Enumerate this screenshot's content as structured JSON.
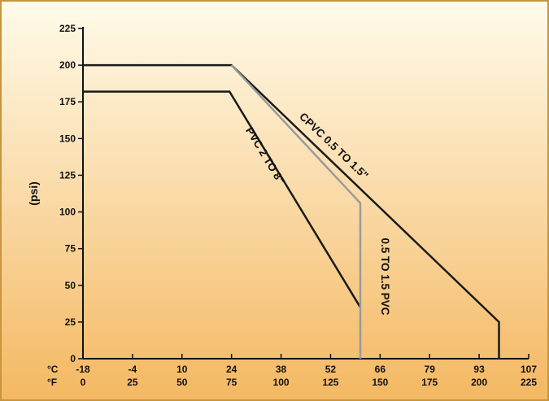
{
  "chart_data": {
    "type": "line",
    "title": "",
    "ylabel": "(psi)",
    "ylim": [
      0,
      225
    ],
    "y_ticks": [
      0,
      25,
      50,
      75,
      100,
      125,
      150,
      175,
      200,
      225
    ],
    "x_axis_c": {
      "unit_label": "°C",
      "ticks": [
        "-18",
        "-4",
        "10",
        "24",
        "38",
        "52",
        "66",
        "79",
        "93",
        "107"
      ]
    },
    "x_axis_f": {
      "unit_label": "°F",
      "ticks": [
        "0",
        "25",
        "50",
        "75",
        "100",
        "125",
        "150",
        "175",
        "200",
        "225"
      ]
    },
    "xlim_f": [
      0,
      225
    ],
    "grid": false,
    "series": [
      {
        "name": "CPVC 0.5 TO 1.5\"",
        "color": "#1a1a1a",
        "points": [
          [
            0,
            200
          ],
          [
            75,
            200
          ],
          [
            210,
            25
          ],
          [
            210,
            0
          ]
        ]
      },
      {
        "name": "PVC 2 TO 8\"",
        "color": "#1a1a1a",
        "points": [
          [
            0,
            182
          ],
          [
            74,
            182
          ],
          [
            140,
            35
          ]
        ]
      },
      {
        "name": "0.5 TO 1.5 PVC",
        "color": "#9a9a9a",
        "points": [
          [
            75,
            200
          ],
          [
            140,
            106
          ],
          [
            140,
            0
          ]
        ]
      }
    ],
    "colors": {
      "background_top": "#fffbea",
      "background_bottom": "#f4b862",
      "border": "#c8943e",
      "axis": "#111111"
    }
  }
}
